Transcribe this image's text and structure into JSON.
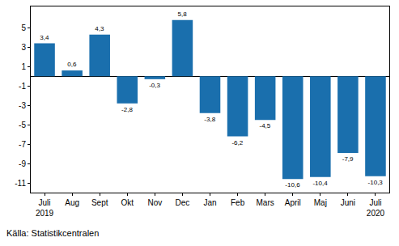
{
  "chart_data": {
    "type": "bar",
    "categories": [
      "Juli 2019",
      "Aug",
      "Sept",
      "Okt",
      "Nov",
      "Dec",
      "Jan",
      "Feb",
      "Mars",
      "April",
      "Maj",
      "Juni",
      "Juli 2020"
    ],
    "values": [
      3.4,
      0.6,
      4.3,
      -2.8,
      -0.3,
      5.8,
      -3.8,
      -6.2,
      -4.5,
      -10.6,
      -10.4,
      -7.9,
      -10.3
    ],
    "value_labels": [
      "3,4",
      "0,6",
      "4,3",
      "-2,8",
      "-0,3",
      "5,8",
      "-3,8",
      "-6,2",
      "-4,5",
      "-10,6",
      "-10,4",
      "-7,9",
      "-10,3"
    ],
    "data_labels": true,
    "color": "#1a6fad",
    "ylim": [
      -12,
      7.2
    ],
    "yticks": [
      5,
      3,
      1,
      -1,
      -3,
      -5,
      -7,
      -9,
      -11
    ],
    "grid": false,
    "source": "Källa: Statistikcentralen"
  }
}
